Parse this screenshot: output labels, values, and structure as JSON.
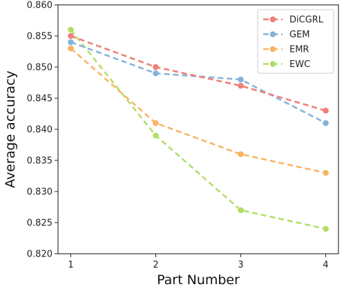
{
  "chart_data": {
    "type": "line",
    "title": "",
    "xlabel": "Part Number",
    "ylabel": "Average accuracy",
    "categories": [
      "1",
      "2",
      "3",
      "4"
    ],
    "x": [
      1,
      2,
      3,
      4
    ],
    "xlim": [
      0.85,
      4.15
    ],
    "ylim": [
      0.82,
      0.86
    ],
    "yticks": [
      "0.820",
      "0.825",
      "0.830",
      "0.835",
      "0.840",
      "0.845",
      "0.850",
      "0.855",
      "0.860"
    ],
    "ytick_values": [
      0.82,
      0.825,
      0.83,
      0.835,
      0.84,
      0.845,
      0.85,
      0.855,
      0.86
    ],
    "grid": false,
    "legend_position": "top-right",
    "line_style": "dashed",
    "series": [
      {
        "name": "DiCGRL",
        "color": "#f07f76",
        "values": [
          0.855,
          0.85,
          0.847,
          0.843
        ]
      },
      {
        "name": "GEM",
        "color": "#84b3d9",
        "values": [
          0.854,
          0.849,
          0.848,
          0.841
        ]
      },
      {
        "name": "EMR",
        "color": "#f8b463",
        "values": [
          0.853,
          0.841,
          0.836,
          0.833
        ]
      },
      {
        "name": "EWC",
        "color": "#b3de69",
        "values": [
          0.856,
          0.839,
          0.827,
          0.824
        ]
      }
    ]
  }
}
